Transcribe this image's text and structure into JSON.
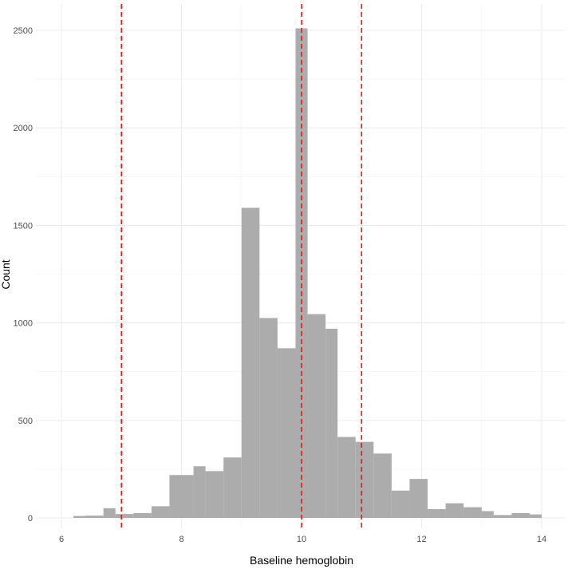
{
  "chart_data": {
    "type": "bar",
    "subtype": "histogram",
    "xlabel": "Baseline hemoglobin",
    "ylabel": "Count",
    "xlim": [
      5.6,
      14.4
    ],
    "ylim": [
      0,
      2600
    ],
    "x_ticks": [
      6,
      8,
      10,
      12,
      14
    ],
    "y_ticks": [
      0,
      500,
      1000,
      1500,
      2000,
      2500
    ],
    "grid": true,
    "bar_color": "#a9a9a9",
    "reference_line_color": "#e31a1c",
    "reference_lines_x": [
      7,
      10,
      11
    ],
    "bins": [
      {
        "x0": 6.2,
        "x1": 6.4,
        "count": 10
      },
      {
        "x0": 6.4,
        "x1": 6.7,
        "count": 12
      },
      {
        "x0": 6.7,
        "x1": 6.9,
        "count": 50
      },
      {
        "x0": 6.9,
        "x1": 7.2,
        "count": 20
      },
      {
        "x0": 7.2,
        "x1": 7.5,
        "count": 25
      },
      {
        "x0": 7.5,
        "x1": 7.8,
        "count": 60
      },
      {
        "x0": 7.8,
        "x1": 8.2,
        "count": 220
      },
      {
        "x0": 8.2,
        "x1": 8.4,
        "count": 265
      },
      {
        "x0": 8.4,
        "x1": 8.7,
        "count": 240
      },
      {
        "x0": 8.7,
        "x1": 9.0,
        "count": 310
      },
      {
        "x0": 9.0,
        "x1": 9.3,
        "count": 1590
      },
      {
        "x0": 9.3,
        "x1": 9.6,
        "count": 1025
      },
      {
        "x0": 9.6,
        "x1": 9.9,
        "count": 870
      },
      {
        "x0": 9.9,
        "x1": 10.1,
        "count": 2510
      },
      {
        "x0": 10.1,
        "x1": 10.4,
        "count": 1045
      },
      {
        "x0": 10.4,
        "x1": 10.6,
        "count": 970
      },
      {
        "x0": 10.6,
        "x1": 10.9,
        "count": 415
      },
      {
        "x0": 10.9,
        "x1": 11.2,
        "count": 390
      },
      {
        "x0": 11.2,
        "x1": 11.5,
        "count": 330
      },
      {
        "x0": 11.5,
        "x1": 11.8,
        "count": 140
      },
      {
        "x0": 11.8,
        "x1": 12.1,
        "count": 200
      },
      {
        "x0": 12.1,
        "x1": 12.4,
        "count": 45
      },
      {
        "x0": 12.4,
        "x1": 12.7,
        "count": 75
      },
      {
        "x0": 12.7,
        "x1": 13.0,
        "count": 55
      },
      {
        "x0": 13.0,
        "x1": 13.2,
        "count": 35
      },
      {
        "x0": 13.2,
        "x1": 13.5,
        "count": 15
      },
      {
        "x0": 13.5,
        "x1": 13.8,
        "count": 25
      },
      {
        "x0": 13.8,
        "x1": 14.0,
        "count": 18
      }
    ]
  }
}
